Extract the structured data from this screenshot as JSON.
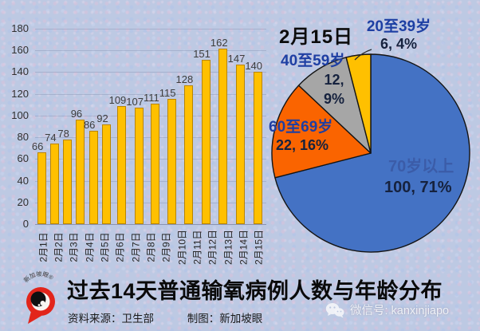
{
  "chart_data": [
    {
      "type": "bar",
      "title": "",
      "xlabel": "",
      "ylabel": "",
      "categories": [
        "2月1日",
        "2月2日",
        "2月3日",
        "2月4日",
        "2月5日",
        "2月6日",
        "2月7日",
        "2月8日",
        "2月9日",
        "2月10日",
        "2月11日",
        "2月12日",
        "2月13日",
        "2月14日",
        "2月15日"
      ],
      "values": [
        66,
        74,
        78,
        96,
        86,
        92,
        109,
        107,
        111,
        115,
        128,
        151,
        162,
        147,
        140
      ],
      "ylim": [
        0,
        180
      ],
      "ytick_step": 20,
      "grid": true,
      "legend": "none",
      "bar_color": "#FFC000",
      "bar_border": "#B98500"
    },
    {
      "type": "pie",
      "title": "2月15日",
      "start_angle": "top",
      "direction": "clockwise",
      "outline_color": "#141414",
      "slices": [
        {
          "label": "70岁以上",
          "value": 100,
          "pct": 71,
          "text": "100, 71%",
          "color": "#4472C4"
        },
        {
          "label": "60至69岁",
          "value": 22,
          "pct": 16,
          "text": "22, 16%",
          "color": "#FA6400"
        },
        {
          "label": "40至59岁",
          "value": 12,
          "pct": 9,
          "text": "12, 9%",
          "color": "#A6A6A6"
        },
        {
          "label": "20至39岁",
          "value": 6,
          "pct": 4,
          "text": "6, 4%",
          "color": "#FFC000"
        }
      ]
    }
  ],
  "footer": {
    "title": "过去14天普通输氧病例人数与年龄分布",
    "source_label": "资料来源：卫生部",
    "credit_label": "制图：新加坡眼"
  },
  "logo": {
    "brand": "新加坡眼",
    "color": "#E2251B"
  },
  "watermark": {
    "wechat_label": "微信号: kanxinjiapo"
  },
  "palette": {
    "background": "#bdc9e3",
    "bar": "#FFC000",
    "pie_blue": "#4472C4",
    "pie_orange": "#FA6400",
    "pie_gray": "#A6A6A6",
    "pie_yellow": "#FFC000",
    "age_label_blue": "#1E3FA3"
  }
}
